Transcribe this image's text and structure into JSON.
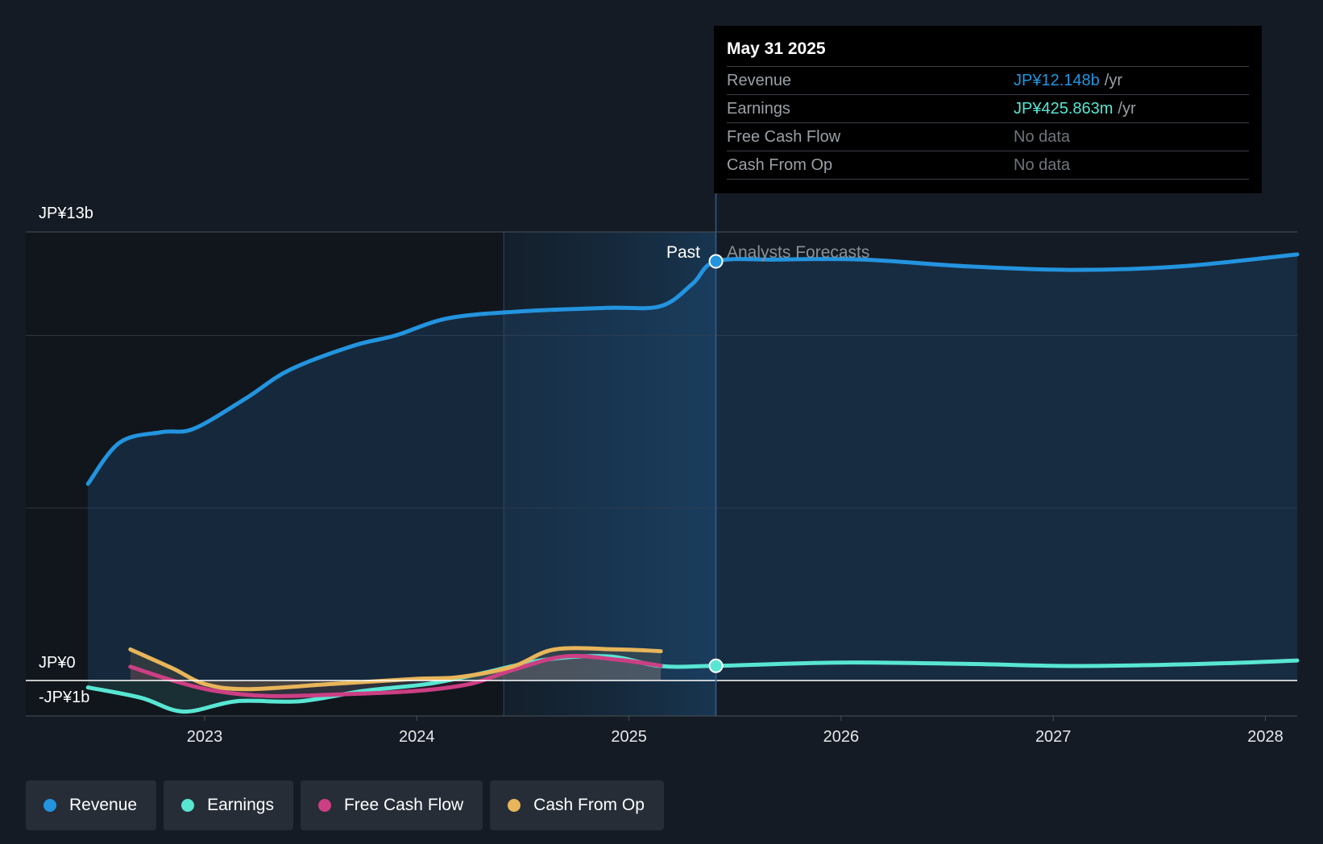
{
  "chart_data": {
    "type": "line",
    "y_axis_labels": {
      "top": "JP¥13b",
      "zero": "JP¥0",
      "bottom": "-JP¥1b"
    },
    "ylim": [
      -1000000000,
      13000000000
    ],
    "x_ticks": [
      "2023",
      "2024",
      "2025",
      "2026",
      "2027",
      "2028"
    ],
    "xlim": [
      2022.4,
      2028.15
    ],
    "past_label": "Past",
    "forecast_label": "Analysts Forecasts",
    "divider_x": 2025.41,
    "highlight_range": [
      2024.41,
      2025.41
    ],
    "series": [
      {
        "name": "Revenue",
        "color": "#2394df",
        "points": [
          [
            2022.45,
            5700000000
          ],
          [
            2022.6,
            6900000000
          ],
          [
            2022.8,
            7200000000
          ],
          [
            2022.95,
            7300000000
          ],
          [
            2023.2,
            8200000000
          ],
          [
            2023.4,
            9000000000
          ],
          [
            2023.7,
            9700000000
          ],
          [
            2023.9,
            10000000000
          ],
          [
            2024.15,
            10500000000
          ],
          [
            2024.5,
            10700000000
          ],
          [
            2024.9,
            10800000000
          ],
          [
            2025.15,
            10850000000
          ],
          [
            2025.3,
            11500000000
          ],
          [
            2025.41,
            12148000000
          ],
          [
            2025.7,
            12200000000
          ],
          [
            2026.1,
            12200000000
          ],
          [
            2026.6,
            12000000000
          ],
          [
            2027.1,
            11900000000
          ],
          [
            2027.6,
            12000000000
          ],
          [
            2028.15,
            12350000000
          ]
        ]
      },
      {
        "name": "Earnings",
        "color": "#58e6d3",
        "points": [
          [
            2022.45,
            -200000000
          ],
          [
            2022.7,
            -500000000
          ],
          [
            2022.9,
            -900000000
          ],
          [
            2023.15,
            -600000000
          ],
          [
            2023.45,
            -600000000
          ],
          [
            2023.75,
            -300000000
          ],
          [
            2024.05,
            -100000000
          ],
          [
            2024.3,
            200000000
          ],
          [
            2024.6,
            600000000
          ],
          [
            2024.9,
            700000000
          ],
          [
            2025.15,
            420000000
          ],
          [
            2025.41,
            425863000
          ],
          [
            2026.0,
            520000000
          ],
          [
            2026.6,
            480000000
          ],
          [
            2027.1,
            420000000
          ],
          [
            2027.7,
            480000000
          ],
          [
            2028.15,
            580000000
          ]
        ]
      },
      {
        "name": "Free Cash Flow",
        "color": "#cc3f84",
        "points": [
          [
            2022.65,
            400000000
          ],
          [
            2022.85,
            0
          ],
          [
            2023.05,
            -300000000
          ],
          [
            2023.3,
            -450000000
          ],
          [
            2023.65,
            -400000000
          ],
          [
            2024.0,
            -300000000
          ],
          [
            2024.25,
            -100000000
          ],
          [
            2024.45,
            300000000
          ],
          [
            2024.7,
            700000000
          ],
          [
            2024.95,
            600000000
          ],
          [
            2025.15,
            430000000
          ]
        ]
      },
      {
        "name": "Cash From Op",
        "color": "#e8b55a",
        "points": [
          [
            2022.65,
            900000000
          ],
          [
            2022.85,
            350000000
          ],
          [
            2023.0,
            -100000000
          ],
          [
            2023.2,
            -250000000
          ],
          [
            2023.6,
            -100000000
          ],
          [
            2024.0,
            50000000
          ],
          [
            2024.2,
            100000000
          ],
          [
            2024.45,
            400000000
          ],
          [
            2024.65,
            900000000
          ],
          [
            2024.95,
            900000000
          ],
          [
            2025.15,
            850000000
          ]
        ]
      }
    ]
  },
  "tooltip": {
    "date": "May 31 2025",
    "rows": [
      {
        "label": "Revenue",
        "value": "JP¥12.148b",
        "unit": "/yr",
        "color": "#2394df"
      },
      {
        "label": "Earnings",
        "value": "JP¥425.863m",
        "unit": "/yr",
        "color": "#58e6d3"
      },
      {
        "label": "Free Cash Flow",
        "value": "No data",
        "unit": "",
        "color": "#6f757c"
      },
      {
        "label": "Cash From Op",
        "value": "No data",
        "unit": "",
        "color": "#6f757c"
      }
    ]
  },
  "legend": [
    {
      "label": "Revenue",
      "color": "#2394df"
    },
    {
      "label": "Earnings",
      "color": "#58e6d3"
    },
    {
      "label": "Free Cash Flow",
      "color": "#cc3f84"
    },
    {
      "label": "Cash From Op",
      "color": "#e8b55a"
    }
  ]
}
